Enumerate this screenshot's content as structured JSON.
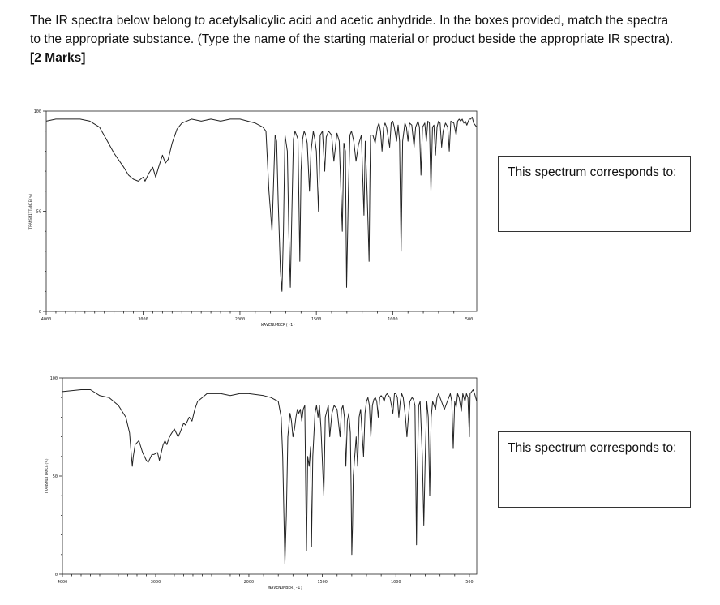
{
  "question": {
    "text_1": "The IR spectra below belong to acetylsalicylic acid and acetic anhydride.  In the boxes provided, match the spectra to the appropriate substance.  (Type the name of the starting material or product beside the appropriate IR spectra). ",
    "marks": "[2 Marks]"
  },
  "answer_boxes": [
    {
      "label": "This spectrum corresponds to:",
      "value": ""
    },
    {
      "label": "This spectrum corresponds to:",
      "value": ""
    }
  ],
  "chart_data": [
    {
      "type": "line",
      "xlabel": "WAVENUMBER(-1)",
      "ylabel": "TRANSMITTANCE(%)",
      "xlim": [
        4000,
        450
      ],
      "ylim": [
        0,
        100
      ],
      "x_tick_labels": [
        "4000",
        "3000",
        "2000",
        "1500",
        "1000",
        "500"
      ],
      "y_tick_labels": [
        "0",
        "50",
        "100"
      ],
      "line_color": "#222222",
      "points": [
        [
          4000,
          95
        ],
        [
          3900,
          96
        ],
        [
          3800,
          96
        ],
        [
          3650,
          96
        ],
        [
          3550,
          95
        ],
        [
          3450,
          92
        ],
        [
          3380,
          86
        ],
        [
          3300,
          79
        ],
        [
          3200,
          72
        ],
        [
          3150,
          68
        ],
        [
          3100,
          66
        ],
        [
          3050,
          65
        ],
        [
          3000,
          67
        ],
        [
          2980,
          65
        ],
        [
          2940,
          69
        ],
        [
          2900,
          72
        ],
        [
          2870,
          67
        ],
        [
          2840,
          72
        ],
        [
          2800,
          78
        ],
        [
          2770,
          74
        ],
        [
          2740,
          76
        ],
        [
          2700,
          84
        ],
        [
          2650,
          91
        ],
        [
          2600,
          94
        ],
        [
          2500,
          96
        ],
        [
          2400,
          95
        ],
        [
          2300,
          96
        ],
        [
          2200,
          95
        ],
        [
          2100,
          96
        ],
        [
          2000,
          96
        ],
        [
          1950,
          95
        ],
        [
          1900,
          94
        ],
        [
          1850,
          92
        ],
        [
          1830,
          90
        ],
        [
          1810,
          60
        ],
        [
          1790,
          40
        ],
        [
          1770,
          88
        ],
        [
          1760,
          85
        ],
        [
          1750,
          55
        ],
        [
          1735,
          20
        ],
        [
          1725,
          10
        ],
        [
          1715,
          40
        ],
        [
          1705,
          88
        ],
        [
          1690,
          80
        ],
        [
          1680,
          40
        ],
        [
          1670,
          12
        ],
        [
          1660,
          50
        ],
        [
          1650,
          86
        ],
        [
          1640,
          90
        ],
        [
          1630,
          88
        ],
        [
          1620,
          86
        ],
        [
          1608,
          25
        ],
        [
          1600,
          70
        ],
        [
          1590,
          86
        ],
        [
          1580,
          90
        ],
        [
          1570,
          88
        ],
        [
          1560,
          84
        ],
        [
          1545,
          60
        ],
        [
          1535,
          80
        ],
        [
          1520,
          90
        ],
        [
          1510,
          86
        ],
        [
          1500,
          80
        ],
        [
          1486,
          50
        ],
        [
          1475,
          88
        ],
        [
          1460,
          90
        ],
        [
          1445,
          70
        ],
        [
          1435,
          87
        ],
        [
          1420,
          90
        ],
        [
          1400,
          88
        ],
        [
          1385,
          75
        ],
        [
          1375,
          82
        ],
        [
          1365,
          89
        ],
        [
          1350,
          85
        ],
        [
          1330,
          40
        ],
        [
          1320,
          84
        ],
        [
          1310,
          80
        ],
        [
          1302,
          12
        ],
        [
          1290,
          60
        ],
        [
          1280,
          88
        ],
        [
          1270,
          90
        ],
        [
          1255,
          85
        ],
        [
          1240,
          75
        ],
        [
          1225,
          83
        ],
        [
          1205,
          88
        ],
        [
          1188,
          48
        ],
        [
          1180,
          85
        ],
        [
          1168,
          60
        ],
        [
          1160,
          40
        ],
        [
          1155,
          25
        ],
        [
          1150,
          60
        ],
        [
          1145,
          88
        ],
        [
          1130,
          88
        ],
        [
          1115,
          84
        ],
        [
          1100,
          92
        ],
        [
          1090,
          94
        ],
        [
          1080,
          90
        ],
        [
          1070,
          80
        ],
        [
          1060,
          92
        ],
        [
          1050,
          94
        ],
        [
          1040,
          92
        ],
        [
          1020,
          82
        ],
        [
          1010,
          94
        ],
        [
          1000,
          95
        ],
        [
          990,
          92
        ],
        [
          975,
          85
        ],
        [
          965,
          93
        ],
        [
          955,
          85
        ],
        [
          945,
          30
        ],
        [
          935,
          85
        ],
        [
          920,
          94
        ],
        [
          910,
          92
        ],
        [
          900,
          85
        ],
        [
          890,
          94
        ],
        [
          875,
          93
        ],
        [
          860,
          82
        ],
        [
          850,
          92
        ],
        [
          835,
          95
        ],
        [
          825,
          92
        ],
        [
          815,
          68
        ],
        [
          805,
          92
        ],
        [
          790,
          94
        ],
        [
          780,
          85
        ],
        [
          770,
          95
        ],
        [
          760,
          94
        ],
        [
          750,
          60
        ],
        [
          740,
          92
        ],
        [
          730,
          93
        ],
        [
          720,
          78
        ],
        [
          710,
          92
        ],
        [
          700,
          95
        ],
        [
          690,
          94
        ],
        [
          680,
          82
        ],
        [
          670,
          90
        ],
        [
          655,
          94
        ],
        [
          640,
          92
        ],
        [
          630,
          80
        ],
        [
          620,
          95
        ],
        [
          600,
          94
        ],
        [
          585,
          88
        ],
        [
          575,
          95
        ],
        [
          565,
          96
        ],
        [
          555,
          95
        ],
        [
          545,
          96
        ],
        [
          535,
          94
        ],
        [
          525,
          95
        ],
        [
          515,
          93
        ],
        [
          500,
          96
        ],
        [
          490,
          96
        ],
        [
          480,
          97
        ],
        [
          470,
          94
        ],
        [
          450,
          92
        ]
      ]
    },
    {
      "type": "line",
      "xlabel": "WAVENUMBER(-1)",
      "ylabel": "TRANSMITTANCE(%)",
      "xlim": [
        4000,
        450
      ],
      "ylim": [
        0,
        100
      ],
      "x_tick_labels": [
        "4000",
        "3000",
        "2000",
        "1500",
        "1000",
        "500"
      ],
      "y_tick_labels": [
        "0",
        "50",
        "100"
      ],
      "line_color": "#222222",
      "points": [
        [
          4000,
          93
        ],
        [
          3800,
          94
        ],
        [
          3700,
          94
        ],
        [
          3600,
          91
        ],
        [
          3500,
          90
        ],
        [
          3400,
          86
        ],
        [
          3320,
          80
        ],
        [
          3280,
          72
        ],
        [
          3260,
          60
        ],
        [
          3250,
          55
        ],
        [
          3240,
          60
        ],
        [
          3220,
          66
        ],
        [
          3180,
          68
        ],
        [
          3140,
          62
        ],
        [
          3100,
          58
        ],
        [
          3080,
          57
        ],
        [
          3060,
          59
        ],
        [
          3040,
          61
        ],
        [
          3020,
          61
        ],
        [
          2980,
          62
        ],
        [
          2960,
          58
        ],
        [
          2940,
          62
        ],
        [
          2920,
          66
        ],
        [
          2900,
          68
        ],
        [
          2880,
          66
        ],
        [
          2860,
          69
        ],
        [
          2840,
          71
        ],
        [
          2800,
          74
        ],
        [
          2760,
          70
        ],
        [
          2740,
          72
        ],
        [
          2700,
          77
        ],
        [
          2680,
          76
        ],
        [
          2640,
          80
        ],
        [
          2610,
          78
        ],
        [
          2580,
          84
        ],
        [
          2550,
          88
        ],
        [
          2500,
          90
        ],
        [
          2450,
          92
        ],
        [
          2400,
          92
        ],
        [
          2300,
          92
        ],
        [
          2200,
          91
        ],
        [
          2100,
          92
        ],
        [
          2000,
          92
        ],
        [
          1900,
          91
        ],
        [
          1850,
          90
        ],
        [
          1800,
          88
        ],
        [
          1780,
          80
        ],
        [
          1770,
          60
        ],
        [
          1755,
          5
        ],
        [
          1745,
          30
        ],
        [
          1735,
          70
        ],
        [
          1720,
          82
        ],
        [
          1710,
          78
        ],
        [
          1700,
          70
        ],
        [
          1690,
          74
        ],
        [
          1680,
          80
        ],
        [
          1670,
          84
        ],
        [
          1660,
          82
        ],
        [
          1650,
          84
        ],
        [
          1640,
          78
        ],
        [
          1630,
          84
        ],
        [
          1620,
          86
        ],
        [
          1608,
          12
        ],
        [
          1600,
          60
        ],
        [
          1590,
          55
        ],
        [
          1580,
          65
        ],
        [
          1574,
          14
        ],
        [
          1565,
          60
        ],
        [
          1550,
          82
        ],
        [
          1540,
          86
        ],
        [
          1530,
          80
        ],
        [
          1520,
          86
        ],
        [
          1510,
          75
        ],
        [
          1490,
          40
        ],
        [
          1480,
          80
        ],
        [
          1460,
          86
        ],
        [
          1450,
          70
        ],
        [
          1435,
          82
        ],
        [
          1420,
          86
        ],
        [
          1400,
          84
        ],
        [
          1380,
          70
        ],
        [
          1370,
          84
        ],
        [
          1360,
          86
        ],
        [
          1350,
          80
        ],
        [
          1340,
          55
        ],
        [
          1330,
          78
        ],
        [
          1320,
          82
        ],
        [
          1310,
          72
        ],
        [
          1305,
          45
        ],
        [
          1300,
          10
        ],
        [
          1295,
          25
        ],
        [
          1290,
          50
        ],
        [
          1280,
          60
        ],
        [
          1270,
          70
        ],
        [
          1260,
          55
        ],
        [
          1250,
          80
        ],
        [
          1240,
          84
        ],
        [
          1220,
          60
        ],
        [
          1210,
          82
        ],
        [
          1200,
          88
        ],
        [
          1190,
          90
        ],
        [
          1180,
          86
        ],
        [
          1170,
          70
        ],
        [
          1160,
          86
        ],
        [
          1150,
          89
        ],
        [
          1140,
          90
        ],
        [
          1130,
          88
        ],
        [
          1120,
          80
        ],
        [
          1110,
          90
        ],
        [
          1100,
          91
        ],
        [
          1090,
          90
        ],
        [
          1080,
          88
        ],
        [
          1070,
          91
        ],
        [
          1060,
          92
        ],
        [
          1040,
          90
        ],
        [
          1020,
          82
        ],
        [
          1010,
          92
        ],
        [
          1000,
          92
        ],
        [
          990,
          90
        ],
        [
          980,
          80
        ],
        [
          970,
          88
        ],
        [
          960,
          92
        ],
        [
          950,
          90
        ],
        [
          935,
          80
        ],
        [
          925,
          70
        ],
        [
          915,
          80
        ],
        [
          905,
          88
        ],
        [
          890,
          90
        ],
        [
          880,
          89
        ],
        [
          870,
          86
        ],
        [
          860,
          15
        ],
        [
          855,
          50
        ],
        [
          845,
          86
        ],
        [
          835,
          88
        ],
        [
          820,
          60
        ],
        [
          810,
          25
        ],
        [
          800,
          60
        ],
        [
          790,
          88
        ],
        [
          780,
          80
        ],
        [
          770,
          40
        ],
        [
          760,
          80
        ],
        [
          750,
          88
        ],
        [
          740,
          86
        ],
        [
          730,
          84
        ],
        [
          720,
          90
        ],
        [
          710,
          92
        ],
        [
          700,
          90
        ],
        [
          690,
          88
        ],
        [
          680,
          86
        ],
        [
          670,
          84
        ],
        [
          660,
          86
        ],
        [
          650,
          88
        ],
        [
          640,
          90
        ],
        [
          630,
          92
        ],
        [
          620,
          88
        ],
        [
          610,
          64
        ],
        [
          600,
          88
        ],
        [
          590,
          85
        ],
        [
          580,
          92
        ],
        [
          570,
          90
        ],
        [
          555,
          83
        ],
        [
          545,
          92
        ],
        [
          530,
          88
        ],
        [
          520,
          92
        ],
        [
          510,
          90
        ],
        [
          500,
          70
        ],
        [
          495,
          92
        ],
        [
          485,
          93
        ],
        [
          475,
          94
        ],
        [
          465,
          92
        ],
        [
          450,
          88
        ]
      ]
    }
  ]
}
